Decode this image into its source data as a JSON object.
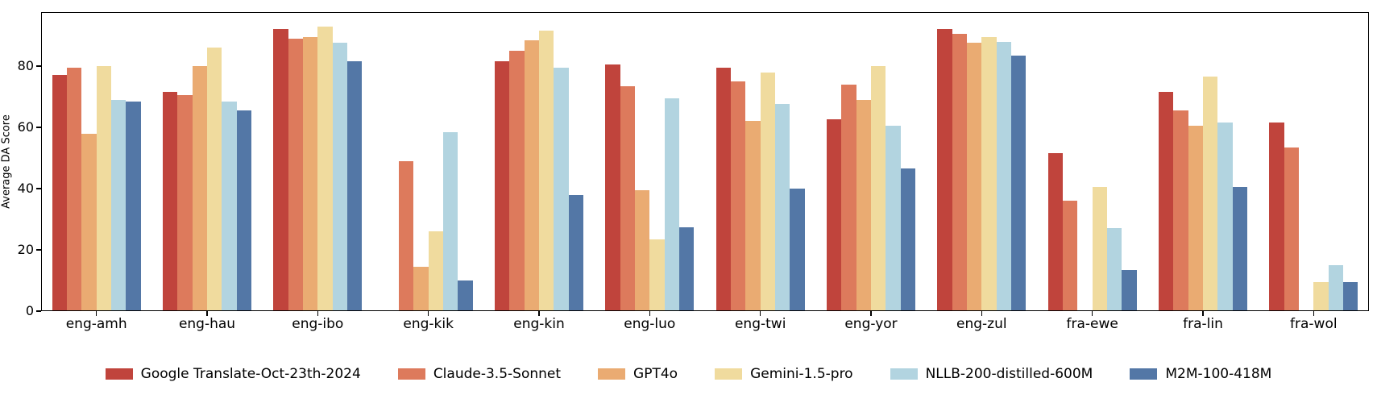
{
  "chart_data": {
    "type": "bar",
    "title": "",
    "xlabel": "",
    "ylabel": "Average DA Score",
    "ylim": [
      0,
      97.6
    ],
    "yticks": [
      0,
      20,
      40,
      60,
      80
    ],
    "grid": false,
    "legend_position": "bottom-center",
    "bar_group_width_ratio": 0.8,
    "categories": [
      "eng-amh",
      "eng-hau",
      "eng-ibo",
      "eng-kik",
      "eng-kin",
      "eng-luo",
      "eng-twi",
      "eng-yor",
      "eng-zul",
      "fra-ewe",
      "fra-lin",
      "fra-wol"
    ],
    "series": [
      {
        "name": "Google Translate-Oct-23th-2024",
        "color": "#c0443c",
        "values": [
          77,
          71.5,
          92,
          0,
          81.5,
          80.5,
          79.5,
          62.5,
          92,
          51.5,
          71.5,
          61.5
        ]
      },
      {
        "name": "Claude-3.5-Sonnet",
        "color": "#dd7a5c",
        "values": [
          79.5,
          70.5,
          89,
          49,
          85,
          73.5,
          75,
          74,
          90.5,
          36,
          65.5,
          53.5
        ]
      },
      {
        "name": "GPT4o",
        "color": "#eaab72",
        "values": [
          58,
          80,
          89.5,
          14.5,
          88.5,
          39.5,
          62,
          69,
          87.5,
          0,
          60.5,
          0
        ]
      },
      {
        "name": "Gemini-1.5-pro",
        "color": "#f0db9e",
        "values": [
          80,
          86,
          93,
          26,
          91.5,
          23.5,
          78,
          80,
          89.5,
          40.5,
          76.5,
          9.5
        ]
      },
      {
        "name": "NLLB-200-distilled-600M",
        "color": "#b2d4e0",
        "values": [
          69,
          68.5,
          87.5,
          58.5,
          79.5,
          69.5,
          67.5,
          60.5,
          88,
          27,
          61.5,
          15
        ]
      },
      {
        "name": "M2M-100-418M",
        "color": "#5377a6",
        "values": [
          68.5,
          65.5,
          81.5,
          10,
          38,
          27.5,
          40,
          46.5,
          83.5,
          13.5,
          40.5,
          9.5
        ]
      }
    ]
  }
}
